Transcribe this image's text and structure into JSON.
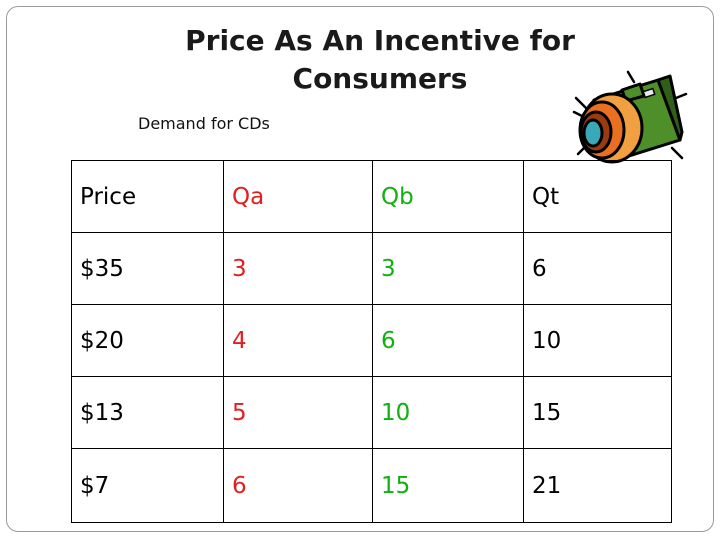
{
  "slide": {
    "title": "Price As An Incentive for Consumers",
    "subtitle": "Demand for CDs"
  },
  "table": {
    "header": [
      "Price",
      "Qa",
      "Qb",
      "Qt"
    ],
    "rows": [
      [
        "$35",
        "3",
        "3",
        "6"
      ],
      [
        "$20",
        "4",
        "6",
        "10"
      ],
      [
        "$13",
        "5",
        "10",
        "15"
      ],
      [
        "$7",
        "6",
        "15",
        "21"
      ]
    ]
  },
  "colors": {
    "price": "#000000",
    "qa": "#e02020",
    "qb": "#10b010",
    "qt": "#000000"
  },
  "clipart": {
    "icon": "camera-icon"
  }
}
